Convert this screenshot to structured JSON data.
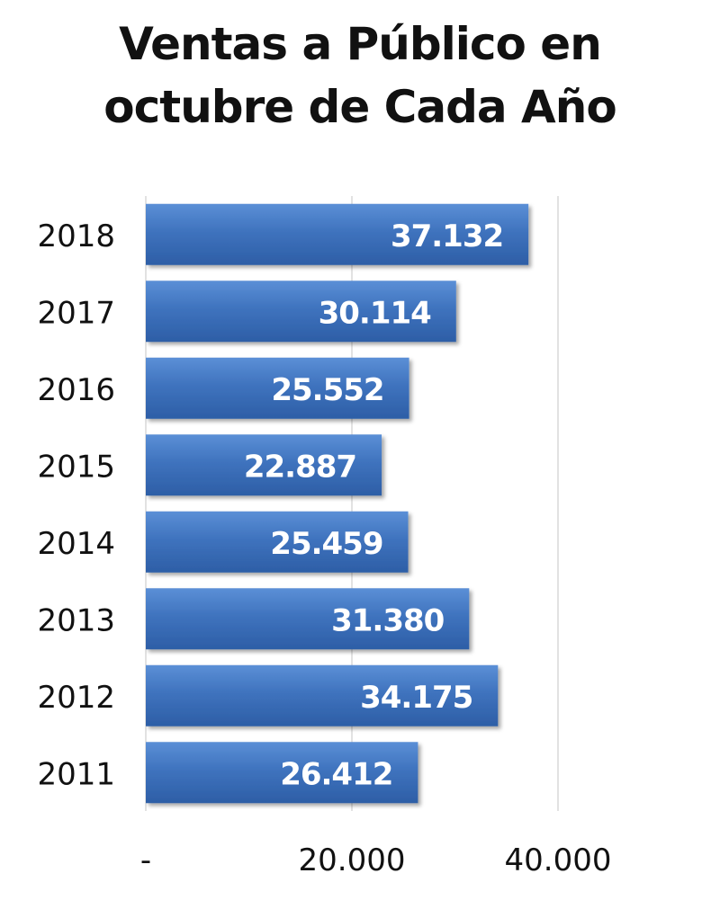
{
  "chart_data": {
    "type": "bar",
    "orientation": "horizontal",
    "title_lines": [
      "Ventas a Público en",
      "octubre de Cada Año"
    ],
    "categories": [
      "2018",
      "2017",
      "2016",
      "2015",
      "2014",
      "2013",
      "2012",
      "2011"
    ],
    "values": [
      37132,
      30114,
      25552,
      22887,
      25459,
      31380,
      34175,
      26412
    ],
    "value_labels": [
      "37.132",
      "30.114",
      "25.552",
      "22.887",
      "25.459",
      "31.380",
      "34.175",
      "26.412"
    ],
    "x_ticks": [
      0,
      20000,
      40000
    ],
    "x_tick_labels": [
      "-",
      "20.000",
      "40.000"
    ],
    "xlim": [
      0,
      40000
    ],
    "grid": true,
    "legend": "none",
    "bar_color": "#3f73be",
    "bar_color_dark": "#2a5aa3",
    "label_color": "#ffffff",
    "grid_color": "#d9d9d9"
  }
}
